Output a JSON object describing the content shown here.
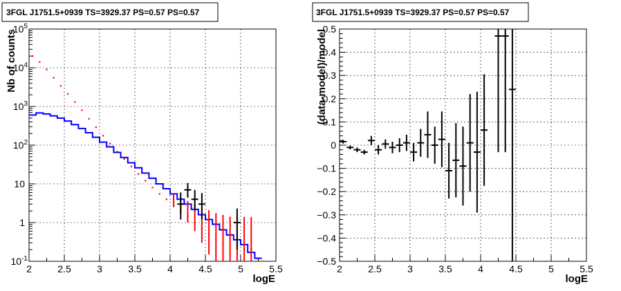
{
  "chart_data": [
    {
      "type": "line",
      "title": "3FGL J1751.5+0939 TS=3929.37 PS=0.57 PS=0.57",
      "xlabel": "logE",
      "ylabel": "Nb of counts",
      "xlim": [
        2,
        5.5
      ],
      "ylim": [
        0.1,
        100000
      ],
      "log_y": true,
      "grid": true,
      "colors": {
        "data": "#ff0000",
        "model": "#0000ff",
        "source": "#000000"
      },
      "x_ticks": [
        "2",
        "2.5",
        "3",
        "3.5",
        "4",
        "4.5",
        "5",
        "5.5"
      ],
      "y_ticks": [
        {
          "value": 0.1,
          "label": "10",
          "exp": "-1"
        },
        {
          "value": 1,
          "label": "1",
          "exp": ""
        },
        {
          "value": 10,
          "label": "10",
          "exp": ""
        },
        {
          "value": 100,
          "label": "10",
          "exp": "2"
        },
        {
          "value": 1000,
          "label": "10",
          "exp": "3"
        },
        {
          "value": 10000,
          "label": "10",
          "exp": "4"
        },
        {
          "value": 100000,
          "label": "10",
          "exp": "5"
        }
      ],
      "bin_edges": [
        2.0,
        2.1,
        2.2,
        2.3,
        2.4,
        2.5,
        2.6,
        2.7,
        2.8,
        2.9,
        3.0,
        3.1,
        3.2,
        3.3,
        3.4,
        3.5,
        3.6,
        3.7,
        3.8,
        3.9,
        4.0,
        4.1,
        4.2,
        4.3,
        4.4,
        4.5,
        4.6,
        4.7,
        4.8,
        4.9,
        5.0,
        5.1,
        5.2,
        5.3
      ],
      "series": [
        {
          "role": "data",
          "x": [
            2.05,
            2.15,
            2.25,
            2.35,
            2.45,
            2.55,
            2.65,
            2.75,
            2.85,
            2.95,
            3.05,
            3.15,
            3.25,
            3.35,
            3.45,
            3.55,
            3.65,
            3.75,
            3.85,
            3.95,
            4.05,
            4.15,
            4.25,
            4.35,
            4.45,
            4.55,
            4.65,
            4.75,
            4.85,
            4.95,
            5.05,
            5.15
          ],
          "y": [
            20000,
            14000,
            9000,
            5500,
            3400,
            2100,
            1300,
            800,
            480,
            290,
            175,
            110,
            68,
            44,
            28,
            18,
            12,
            8,
            5.5,
            4,
            2.8,
            2,
            1.4,
            1,
            0.7,
            0.5,
            0.35,
            0.28,
            0.22,
            0.25,
            0.2,
            0.2
          ],
          "err_low": [
            0,
            0,
            0,
            0,
            0,
            0,
            0,
            0,
            0,
            0,
            0,
            0,
            0,
            0,
            0,
            0,
            0,
            0,
            0,
            0,
            0.3,
            0.3,
            0.4,
            0.4,
            0.4,
            0.35,
            0.3,
            0.25,
            0.2,
            0.22,
            0.18,
            0.18
          ],
          "err_high": [
            0,
            0,
            0,
            0,
            0,
            0,
            0,
            0,
            0,
            0,
            0,
            0,
            0,
            0,
            0,
            0,
            0,
            0,
            0,
            0,
            3,
            2.5,
            2.2,
            2,
            1.8,
            1.6,
            1.4,
            1.3,
            1.2,
            1.3,
            1.2,
            1.2
          ]
        },
        {
          "role": "model",
          "y": [
            600,
            680,
            640,
            570,
            500,
            420,
            340,
            270,
            210,
            160,
            120,
            90,
            65,
            48,
            35,
            26,
            19,
            14,
            10,
            7.5,
            5.5,
            4,
            3,
            2.2,
            1.6,
            1.2,
            0.9,
            0.65,
            0.48,
            0.36,
            0.27,
            0.17,
            0.12
          ]
        },
        {
          "role": "source",
          "x": [
            4.15,
            4.25,
            4.35,
            4.45,
            4.95
          ],
          "y": [
            3,
            7,
            4,
            3,
            1
          ],
          "err_low": [
            1.8,
            2.6,
            2,
            1.8,
            0.8
          ],
          "err_high": [
            3,
            3.5,
            3,
            2.8,
            1.3
          ]
        }
      ]
    },
    {
      "type": "scatter",
      "title": "3FGL J1751.5+0939 TS=3929.37 PS=0.57 PS=0.57",
      "xlabel": "logE",
      "ylabel": "(data-model)/model",
      "xlim": [
        2,
        5.5
      ],
      "ylim": [
        -0.5,
        0.5
      ],
      "grid": true,
      "x_ticks": [
        "2",
        "2.5",
        "3",
        "3.5",
        "4",
        "4.5",
        "5",
        "5.5"
      ],
      "y_ticks": [
        "−0.5",
        "−0.4",
        "−0.3",
        "−0.2",
        "−0.1",
        "0",
        "0.1",
        "0.2",
        "0.3",
        "0.4",
        "0.5"
      ],
      "series": [
        {
          "x": [
            2.05,
            2.15,
            2.25,
            2.35,
            2.45,
            2.55,
            2.65,
            2.75,
            2.85,
            2.95,
            3.05,
            3.15,
            3.25,
            3.35,
            3.45,
            3.55,
            3.65,
            3.75,
            3.85,
            3.95,
            4.05,
            4.25,
            4.35,
            4.45
          ],
          "y": [
            0.015,
            -0.01,
            -0.02,
            -0.03,
            0.02,
            -0.02,
            0.005,
            -0.01,
            0.0,
            0.01,
            -0.03,
            0.01,
            0.045,
            0.0,
            0.025,
            -0.11,
            -0.065,
            -0.09,
            0.01,
            -0.03,
            0.065,
            0.47,
            0.47,
            0.24
          ],
          "err": [
            0.008,
            0.008,
            0.01,
            0.01,
            0.02,
            0.02,
            0.02,
            0.025,
            0.03,
            0.035,
            0.04,
            0.06,
            0.1,
            0.08,
            0.12,
            0.12,
            0.16,
            0.17,
            0.21,
            0.26,
            0.24,
            0.5,
            0.5,
            0.8
          ]
        }
      ]
    }
  ]
}
